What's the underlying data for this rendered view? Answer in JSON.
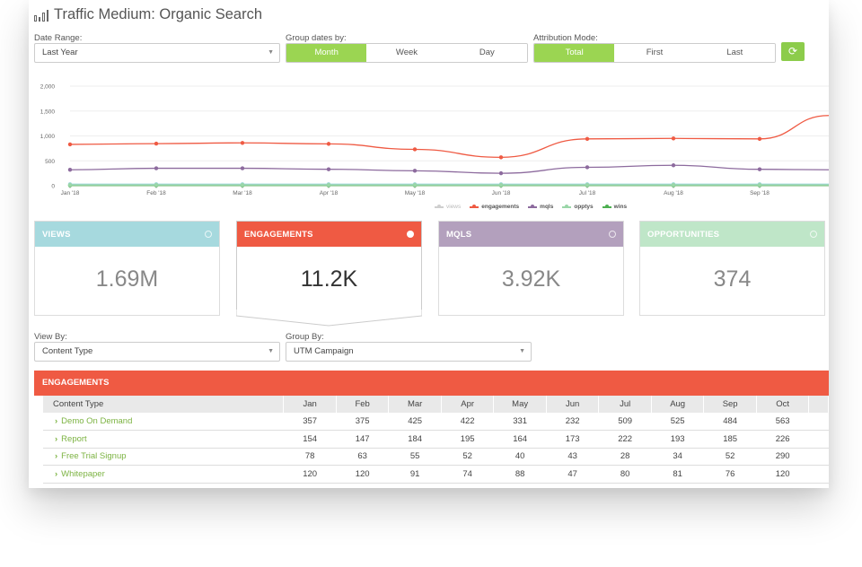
{
  "header": {
    "title": "Traffic Medium: Organic Search"
  },
  "controls": {
    "date_range": {
      "label": "Date Range:",
      "value": "Last Year"
    },
    "group_dates": {
      "label": "Group dates by:",
      "options": [
        "Month",
        "Week",
        "Day"
      ],
      "selected": "Month"
    },
    "attribution": {
      "label": "Attribution Mode:",
      "options": [
        "Total",
        "First",
        "Last"
      ],
      "selected": "Total"
    },
    "refresh_icon": "refresh-icon"
  },
  "colors": {
    "views": "#9ed6dc",
    "engagements": "#ef5a43",
    "mqls": "#8d6b9e",
    "opptys": "#9ad6a8",
    "wins": "#4caf50",
    "accent_green": "#9bd552"
  },
  "chart_data": {
    "type": "line",
    "categories": [
      "Jan '18",
      "Feb '18",
      "Mar '18",
      "Apr '18",
      "May '18",
      "Jun '18",
      "Jul '18",
      "Aug '18",
      "Sep '18"
    ],
    "y_ticks": [
      "0",
      "500",
      "1,000",
      "1,500",
      "2,000"
    ],
    "ylim": [
      0,
      2000
    ],
    "series": [
      {
        "name": "views",
        "values": [
          30,
          30,
          30,
          30,
          30,
          30,
          30,
          30,
          30
        ],
        "end_value": 30
      },
      {
        "name": "engagements",
        "values": [
          830,
          845,
          860,
          840,
          730,
          570,
          940,
          950,
          940
        ],
        "end_value": 1410
      },
      {
        "name": "mqls",
        "values": [
          320,
          350,
          350,
          330,
          300,
          250,
          370,
          410,
          330
        ],
        "end_value": 320
      },
      {
        "name": "opptys",
        "values": [
          15,
          15,
          15,
          15,
          15,
          15,
          15,
          15,
          15
        ],
        "end_value": 15
      },
      {
        "name": "wins",
        "values": [
          5,
          5,
          5,
          5,
          5,
          5,
          5,
          5,
          5
        ],
        "end_value": 5
      }
    ]
  },
  "legend": [
    "views",
    "engagements",
    "mqls",
    "opptys",
    "wins"
  ],
  "cards": [
    {
      "label": "VIEWS",
      "value": "1.69M"
    },
    {
      "label": "ENGAGEMENTS",
      "value": "11.2K"
    },
    {
      "label": "MQLS",
      "value": "3.92K"
    },
    {
      "label": "OPPORTUNITIES",
      "value": "374"
    }
  ],
  "view_by": {
    "label": "View By:",
    "value": "Content Type"
  },
  "group_by": {
    "label": "Group By:",
    "value": "UTM Campaign"
  },
  "table": {
    "title": "ENGAGEMENTS",
    "columns": [
      "Content Type",
      "Jan",
      "Feb",
      "Mar",
      "Apr",
      "May",
      "Jun",
      "Jul",
      "Aug",
      "Sep",
      "Oct"
    ],
    "rows": [
      {
        "name": "Demo On Demand",
        "values": [
          "357",
          "375",
          "425",
          "422",
          "331",
          "232",
          "509",
          "525",
          "484",
          "563"
        ]
      },
      {
        "name": "Report",
        "values": [
          "154",
          "147",
          "184",
          "195",
          "164",
          "173",
          "222",
          "193",
          "185",
          "226"
        ]
      },
      {
        "name": "Free Trial Signup",
        "values": [
          "78",
          "63",
          "55",
          "52",
          "40",
          "43",
          "28",
          "34",
          "52",
          "290"
        ]
      },
      {
        "name": "Whitepaper",
        "values": [
          "120",
          "120",
          "91",
          "74",
          "88",
          "47",
          "80",
          "81",
          "76",
          "120"
        ]
      }
    ]
  }
}
